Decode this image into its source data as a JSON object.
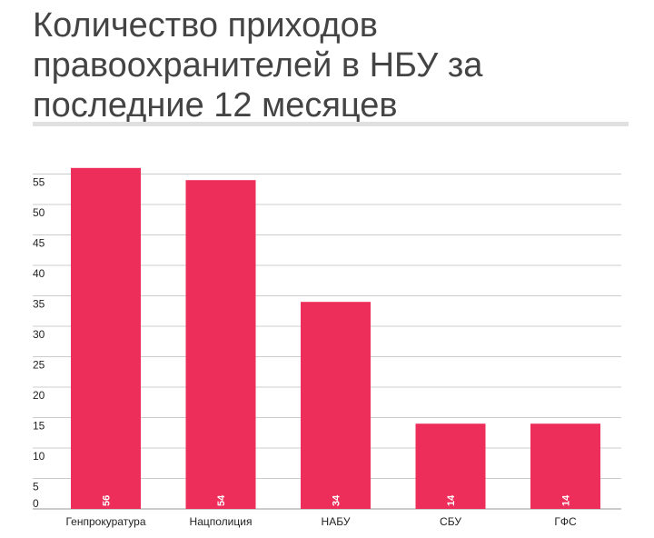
{
  "chart_data": {
    "type": "bar",
    "title": "Количество приходов правоохранителей в НБУ за последние 12 месяцев",
    "categories": [
      "Генпрокуратура",
      "Нацполиция",
      "НАБУ",
      "СБУ",
      "ГФС"
    ],
    "values": [
      56,
      54,
      34,
      14,
      14
    ],
    "value_labels": [
      "56",
      "54",
      "34",
      "14",
      "14"
    ],
    "yticks": [
      "0",
      "5",
      "10",
      "15",
      "20",
      "25",
      "30",
      "35",
      "40",
      "45",
      "50",
      "55"
    ],
    "ylim": [
      0,
      58
    ],
    "grid": true,
    "xlabel": "",
    "ylabel": "",
    "colors": {
      "bar": "#ee2e5a",
      "grid": "#cccccc",
      "text": "#222222"
    }
  }
}
